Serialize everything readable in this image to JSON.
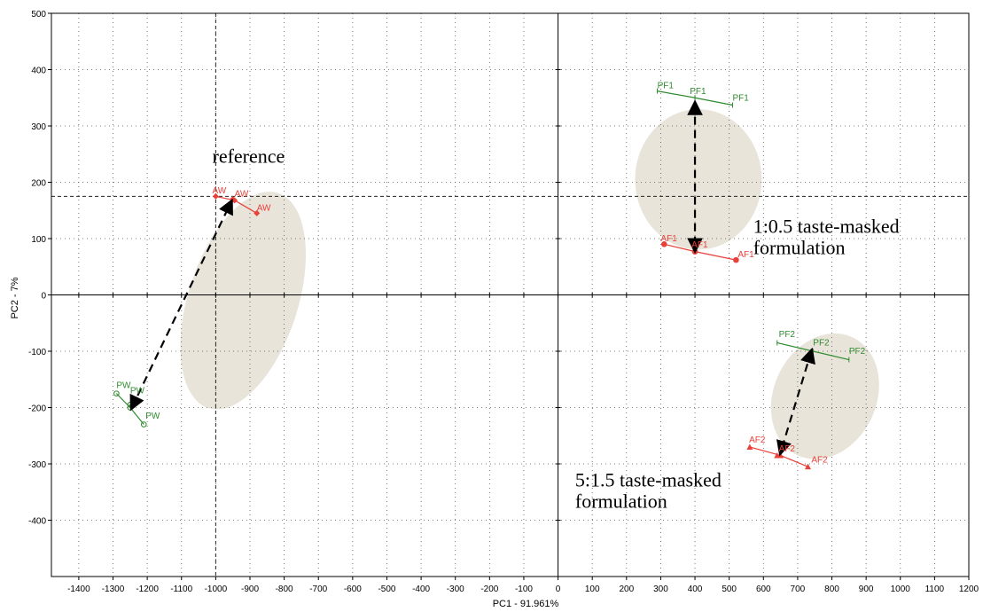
{
  "chart_data": {
    "type": "scatter",
    "title": "",
    "xlabel": "PC1 - 91.961%",
    "ylabel": "PC2 - 7%",
    "xlim": [
      -1480,
      1200
    ],
    "ylim": [
      -500,
      500
    ],
    "x_ticks": [
      -1400,
      -1300,
      -1200,
      -1100,
      -1000,
      -900,
      -800,
      -700,
      -600,
      -500,
      -400,
      -300,
      -200,
      -100,
      0,
      100,
      200,
      300,
      400,
      500,
      600,
      700,
      800,
      900,
      1000,
      1100,
      1200
    ],
    "y_ticks": [
      500,
      400,
      300,
      200,
      100,
      0,
      -100,
      -200,
      -300,
      -400
    ],
    "grid": true,
    "colors": {
      "green": "#2e8b2e",
      "red": "#e8413a",
      "ellipse": "#e8e4da"
    },
    "reference_lines": {
      "x": -1000,
      "y": 175
    },
    "ellipses": [
      {
        "cx": -920,
        "cy": -10,
        "rx": 330,
        "ry": 160,
        "rotation_deg": 72,
        "group": "reference"
      },
      {
        "cx": 410,
        "cy": 205,
        "rx": 185,
        "ry": 205,
        "rotation_deg": 0,
        "group": "1:0.5"
      },
      {
        "cx": 780,
        "cy": -180,
        "rx": 190,
        "ry": 150,
        "rotation_deg": 65,
        "group": "5:1.5"
      }
    ],
    "series": [
      {
        "label": "PW",
        "color": "green",
        "marker": "circle",
        "points": [
          [
            -1290,
            -175
          ],
          [
            -1250,
            -195
          ],
          [
            -1210,
            -230
          ]
        ],
        "center": [
          -1250,
          -200
        ]
      },
      {
        "label": "AW",
        "color": "red",
        "marker": "diamond",
        "points": [
          [
            -1000,
            175
          ],
          [
            -880,
            145
          ],
          [
            -950,
            170
          ]
        ],
        "center": [
          -945,
          168
        ]
      },
      {
        "label": "PF1",
        "color": "green",
        "marker": "none",
        "points": [
          [
            290,
            362
          ],
          [
            400,
            350
          ],
          [
            510,
            337
          ]
        ],
        "center": [
          400,
          350
        ]
      },
      {
        "label": "AF1",
        "color": "red",
        "marker": "circle",
        "points": [
          [
            310,
            90
          ],
          [
            400,
            77
          ],
          [
            520,
            62
          ]
        ],
        "center": [
          400,
          77
        ]
      },
      {
        "label": "PF2",
        "color": "green",
        "marker": "none",
        "points": [
          [
            640,
            -85
          ],
          [
            740,
            -100
          ],
          [
            850,
            -115
          ]
        ],
        "center": [
          745,
          -100
        ]
      },
      {
        "label": "AF2",
        "color": "red",
        "marker": "triangle",
        "points": [
          [
            560,
            -270
          ],
          [
            640,
            -285
          ],
          [
            730,
            -305
          ]
        ],
        "center": [
          650,
          -285
        ]
      }
    ],
    "point_labels": [
      {
        "text": "PW",
        "x": -1290,
        "y": -165,
        "color": "green"
      },
      {
        "text": "PW",
        "x": -1250,
        "y": -175,
        "color": "green"
      },
      {
        "text": "PW",
        "x": -1205,
        "y": -220,
        "color": "green"
      },
      {
        "text": "AW",
        "x": -1010,
        "y": 180,
        "color": "red"
      },
      {
        "text": "AW",
        "x": -945,
        "y": 175,
        "color": "red"
      },
      {
        "text": "AW",
        "x": -880,
        "y": 150,
        "color": "red"
      },
      {
        "text": "PF1",
        "x": 290,
        "y": 367,
        "color": "green"
      },
      {
        "text": "PF1",
        "x": 385,
        "y": 357,
        "color": "green"
      },
      {
        "text": "PF1",
        "x": 510,
        "y": 345,
        "color": "green"
      },
      {
        "text": "AF1",
        "x": 300,
        "y": 95,
        "color": "red"
      },
      {
        "text": "AF1",
        "x": 390,
        "y": 84,
        "color": "red"
      },
      {
        "text": "AF1",
        "x": 525,
        "y": 67,
        "color": "red"
      },
      {
        "text": "PF2",
        "x": 645,
        "y": -75,
        "color": "green"
      },
      {
        "text": "PF2",
        "x": 745,
        "y": -90,
        "color": "green"
      },
      {
        "text": "PF2",
        "x": 850,
        "y": -105,
        "color": "green"
      },
      {
        "text": "AF2",
        "x": 558,
        "y": -262,
        "color": "red"
      },
      {
        "text": "AF2",
        "x": 645,
        "y": -278,
        "color": "red"
      },
      {
        "text": "AF2",
        "x": 740,
        "y": -298,
        "color": "red"
      }
    ],
    "arrows": [
      {
        "from": [
          -1245,
          -200
        ],
        "to": [
          -955,
          165
        ],
        "style": "dashed",
        "double": true
      },
      {
        "from": [
          400,
          340
        ],
        "to": [
          400,
          80
        ],
        "style": "dashed",
        "double": true
      },
      {
        "from": [
          740,
          -100
        ],
        "to": [
          650,
          -280
        ],
        "style": "dashed",
        "double": true
      }
    ],
    "annotations": [
      {
        "lines": [
          "reference"
        ],
        "x": -1010,
        "y": 235
      },
      {
        "lines": [
          "1:0.5 taste-masked",
          "formulation"
        ],
        "x": 570,
        "y": 110
      },
      {
        "lines": [
          "5:1.5 taste-masked",
          "formulation"
        ],
        "x": 50,
        "y": -340
      }
    ]
  }
}
